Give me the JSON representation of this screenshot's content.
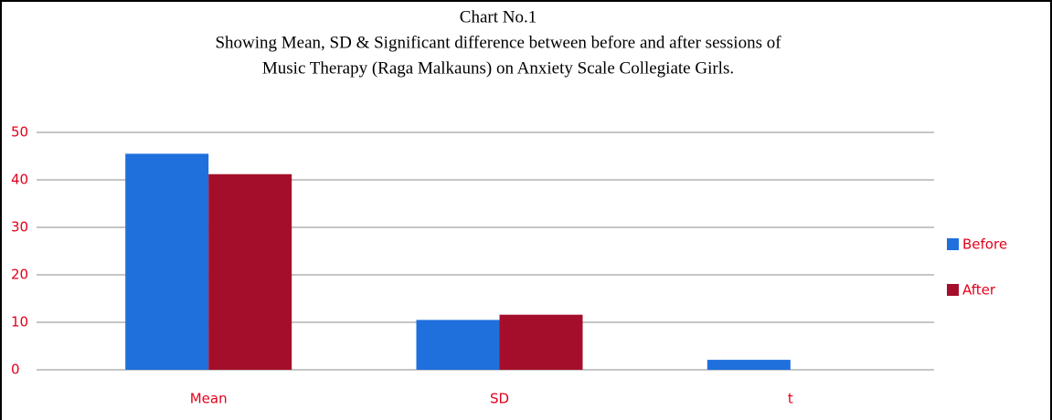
{
  "chart_data": {
    "type": "bar",
    "title": "Chart No.1",
    "subtitle": [
      "Showing Mean, SD & Significant difference between before and after sessions  of",
      "Music Therapy (Raga Malkauns) on Anxiety Scale Collegiate Girls."
    ],
    "categories": [
      "Mean",
      "SD",
      "t"
    ],
    "series": [
      {
        "name": "Before",
        "color": "#1f6fdc",
        "values": [
          45.5,
          10.5,
          2.1
        ]
      },
      {
        "name": "After",
        "color": "#a50e2a",
        "values": [
          41.2,
          11.6,
          null
        ]
      }
    ],
    "ylim": [
      0,
      50
    ],
    "yticks": [
      0,
      10,
      20,
      30,
      40,
      50
    ],
    "grid": true,
    "legend": "right"
  }
}
